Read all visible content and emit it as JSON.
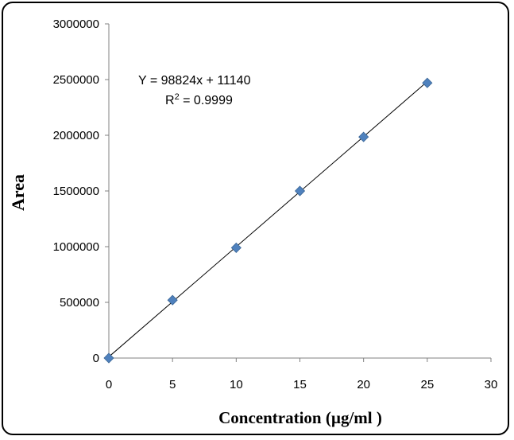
{
  "chart_data": {
    "type": "scatter",
    "xlabel": "Concentration (µg/ml )",
    "ylabel": "Area",
    "xlim": [
      0,
      30
    ],
    "ylim": [
      0,
      3000000
    ],
    "x_ticks": [
      "0",
      "5",
      "10",
      "15",
      "20",
      "25",
      "30"
    ],
    "y_ticks": [
      "0",
      "500000",
      "1000000",
      "1500000",
      "2000000",
      "2500000",
      "3000000"
    ],
    "grid": false,
    "series": [
      {
        "x": [
          0,
          5,
          10,
          15,
          20,
          25
        ],
        "y": [
          0,
          520000,
          990000,
          1500000,
          1985000,
          2470000
        ],
        "marker": "diamond",
        "color": "#4F81BD"
      }
    ],
    "trendline": {
      "slope": 98824,
      "intercept": 11140,
      "x_range": [
        0,
        25
      ],
      "color": "#000000",
      "equation_text": "Y = 98824x + 11140",
      "r2_prefix": "R",
      "r2_sup": "2",
      "r2_value": " = 0.9999"
    }
  }
}
